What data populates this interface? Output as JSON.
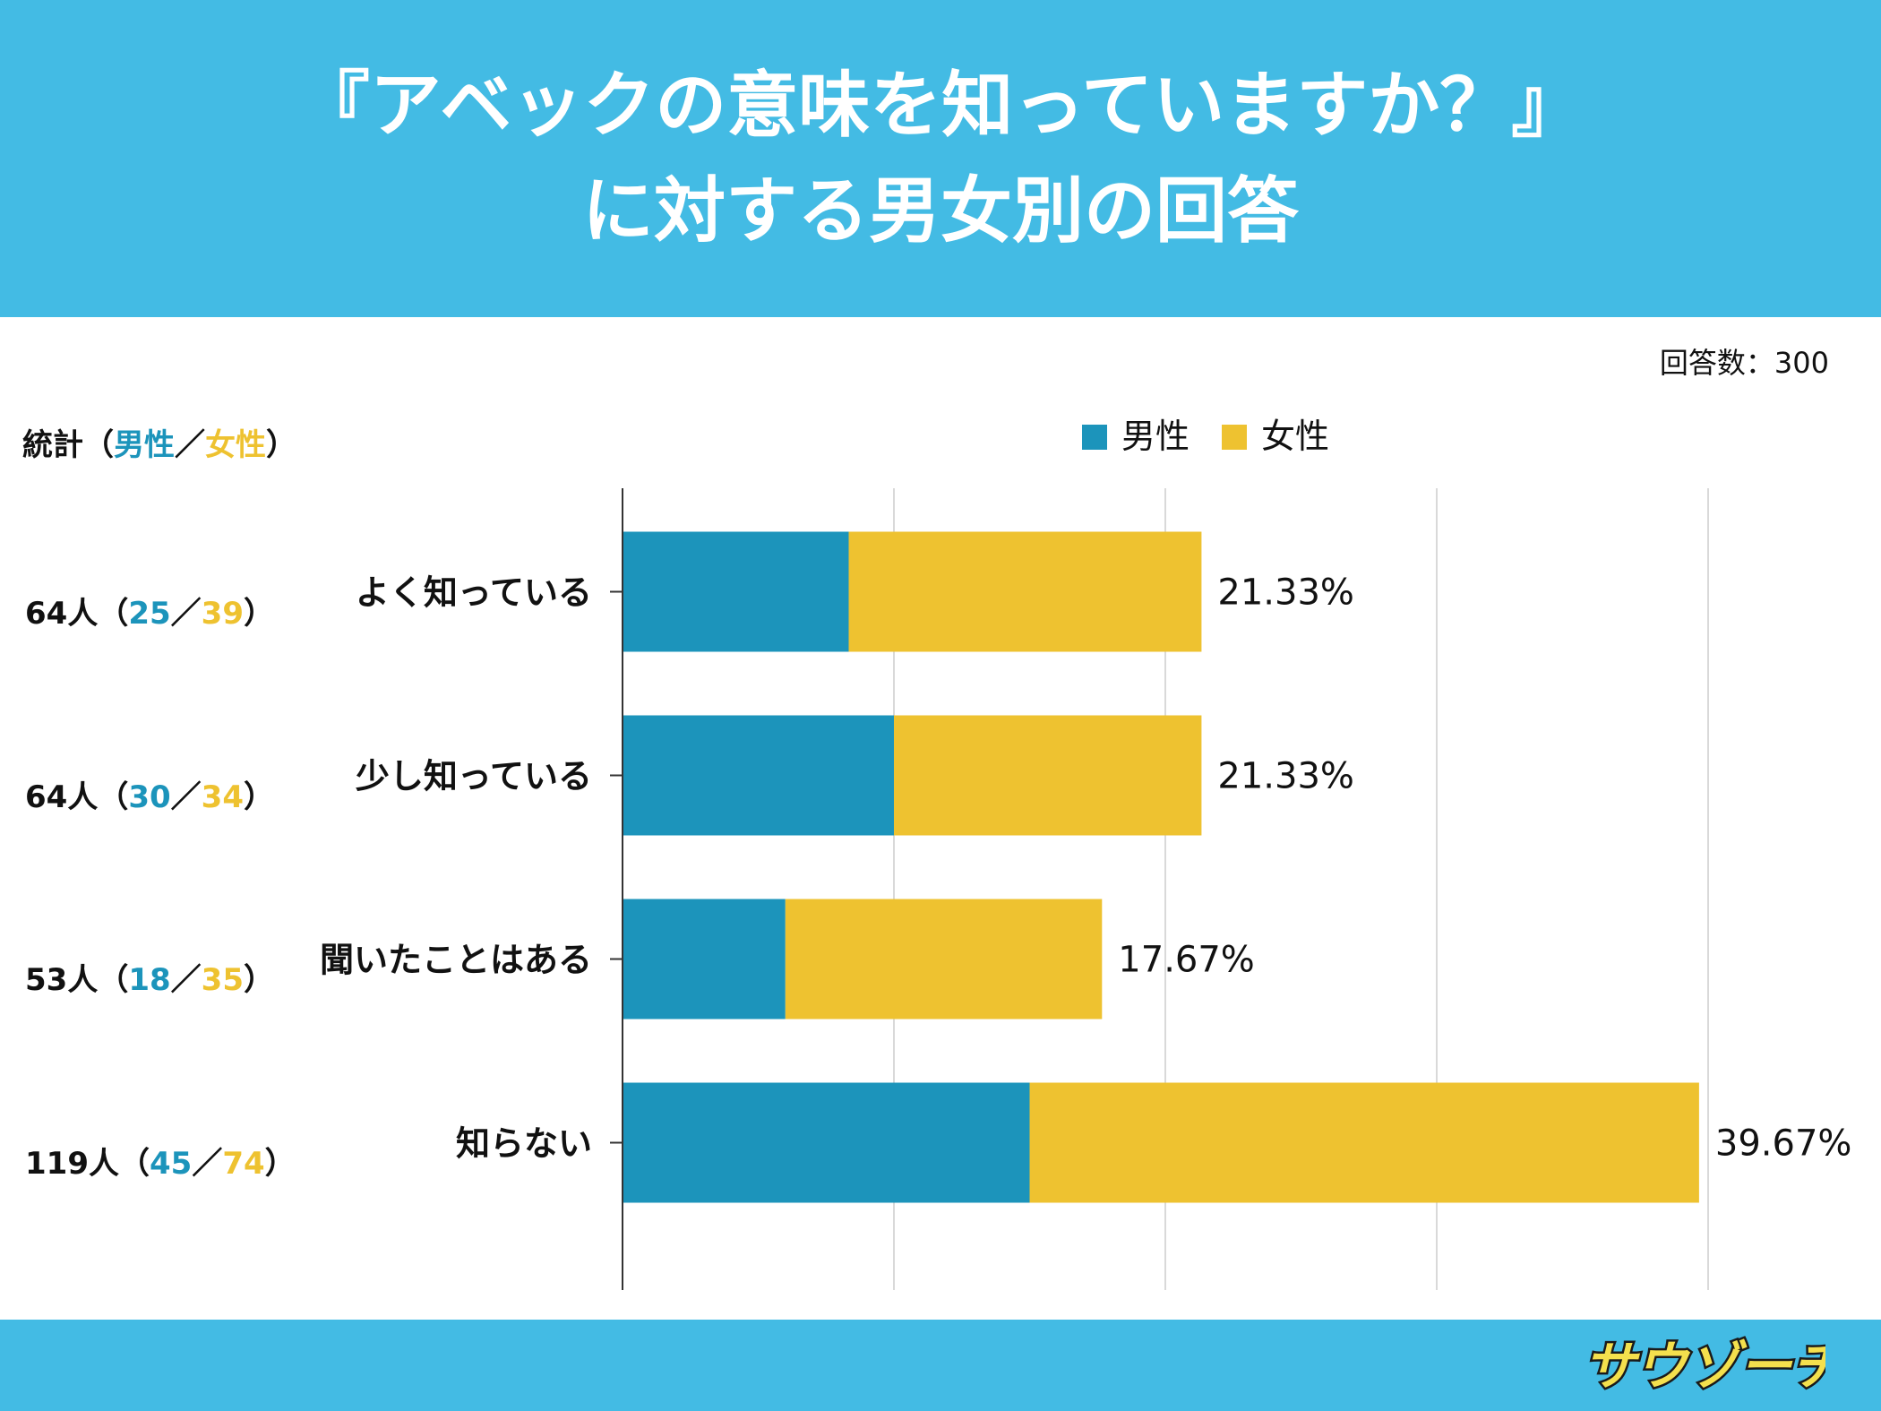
{
  "header": {
    "title_line1": "『アベックの意味を知っていますか？』",
    "title_line2": "に対する男女別の回答"
  },
  "respondents": "回答数：300",
  "stats": {
    "label": "統計",
    "open": "（",
    "male": "男性",
    "sep": "／",
    "female": "女性",
    "close": "）",
    "rows": [
      {
        "total": "64人",
        "male": "25",
        "female": "39"
      },
      {
        "total": "64人",
        "male": "30",
        "female": "34"
      },
      {
        "total": "53人",
        "male": "18",
        "female": "35"
      },
      {
        "total": "119人",
        "male": "45",
        "female": "74"
      }
    ]
  },
  "legend": [
    {
      "label": "男性",
      "color": "#1c94bb"
    },
    {
      "label": "女性",
      "color": "#eec230"
    }
  ],
  "logo": {
    "text": "サウゾーチ"
  },
  "chart_data": {
    "type": "bar",
    "orientation": "horizontal",
    "stacked": true,
    "categories": [
      "よく知っている",
      "少し知っている",
      "聞いたことはある",
      "知らない"
    ],
    "series": [
      {
        "name": "男性",
        "color": "#1c94bb",
        "values": [
          25,
          30,
          18,
          45
        ]
      },
      {
        "name": "女性",
        "color": "#eec230",
        "values": [
          39,
          34,
          35,
          74
        ]
      }
    ],
    "data_labels": [
      "21.33%",
      "21.33%",
      "17.67%",
      "39.67%"
    ],
    "xlim": [
      0,
      120
    ],
    "grid": true,
    "legend_position": "top"
  }
}
